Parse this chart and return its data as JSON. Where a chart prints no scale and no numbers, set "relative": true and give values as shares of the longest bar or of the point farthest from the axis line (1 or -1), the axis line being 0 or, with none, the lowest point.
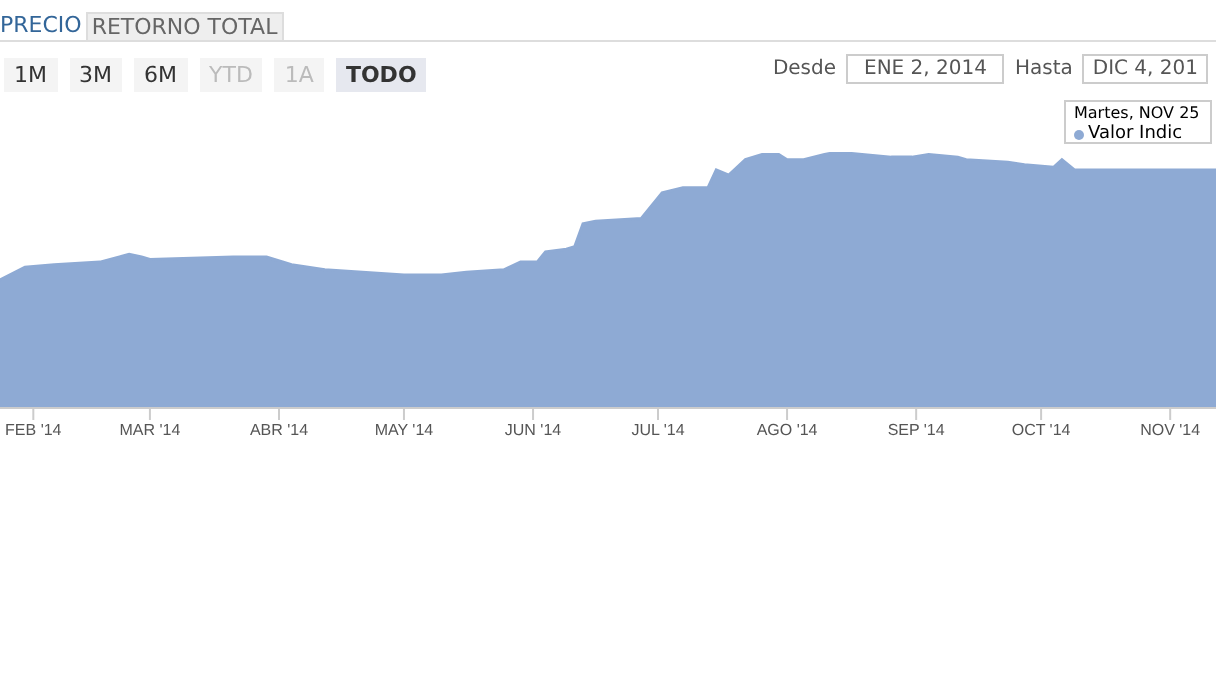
{
  "chart_data": {
    "type": "area",
    "relative": true,
    "color": "#8eaad4",
    "x": [
      "2014-01-24",
      "2014-01-30",
      "2014-02-06",
      "2014-02-17",
      "2014-02-24",
      "2014-02-27",
      "2014-03-01",
      "2014-03-21",
      "2014-03-29",
      "2014-04-04",
      "2014-04-12",
      "2014-04-21",
      "2014-05-01",
      "2014-05-10",
      "2014-05-16",
      "2014-05-25",
      "2014-05-29",
      "2014-06-02",
      "2014-06-04",
      "2014-06-09",
      "2014-06-11",
      "2014-06-13",
      "2014-06-16",
      "2014-06-27",
      "2014-07-02",
      "2014-07-07",
      "2014-07-13",
      "2014-07-15",
      "2014-07-18",
      "2014-07-22",
      "2014-07-26",
      "2014-07-30",
      "2014-08-01",
      "2014-08-05",
      "2014-08-10",
      "2014-08-13",
      "2014-08-19",
      "2014-08-26",
      "2014-08-31",
      "2014-09-04",
      "2014-09-11",
      "2014-09-13",
      "2014-09-23",
      "2014-09-27",
      "2014-10-04",
      "2014-10-06",
      "2014-10-09",
      "2014-10-13",
      "2014-10-21",
      "2014-10-30",
      "2014-11-12"
    ],
    "values": [
      0.5,
      0.55,
      0.56,
      0.57,
      0.6,
      0.59,
      0.58,
      0.59,
      0.59,
      0.56,
      0.54,
      0.53,
      0.52,
      0.52,
      0.53,
      0.54,
      0.57,
      0.57,
      0.61,
      0.62,
      0.63,
      0.72,
      0.73,
      0.74,
      0.84,
      0.86,
      0.86,
      0.93,
      0.91,
      0.97,
      0.99,
      0.99,
      0.97,
      0.97,
      0.99,
      1.0,
      0.99,
      0.98,
      0.98,
      0.99,
      0.98,
      0.97,
      0.96,
      0.95,
      0.94,
      0.97,
      0.93,
      0.93,
      0.93,
      0.93,
      0.93
    ],
    "xlim": [
      "2014-01-24",
      "2014-11-12"
    ],
    "xticks": [
      {
        "value": "2014-02-01",
        "label": "FEB '14"
      },
      {
        "value": "2014-03-01",
        "label": "MAR '14"
      },
      {
        "value": "2014-04-01",
        "label": "ABR '14"
      },
      {
        "value": "2014-05-01",
        "label": "MAY '14"
      },
      {
        "value": "2014-06-01",
        "label": "JUN '14"
      },
      {
        "value": "2014-07-01",
        "label": "JUL '14"
      },
      {
        "value": "2014-08-01",
        "label": "AGO '14"
      },
      {
        "value": "2014-09-01",
        "label": "SEP '14"
      },
      {
        "value": "2014-10-01",
        "label": "OCT '14"
      },
      {
        "value": "2014-11-01",
        "label": "NOV '14"
      }
    ],
    "annotations": [
      "PRECIO",
      "RETORNO TOTAL",
      "1M",
      "3M",
      "6M",
      "YTD",
      "1A",
      "TODO",
      "Desde",
      "ENE 2, 2014",
      "Hasta",
      "DIC 4, 201",
      "Martes, NOV 25",
      "Valor Indic"
    ]
  }
}
